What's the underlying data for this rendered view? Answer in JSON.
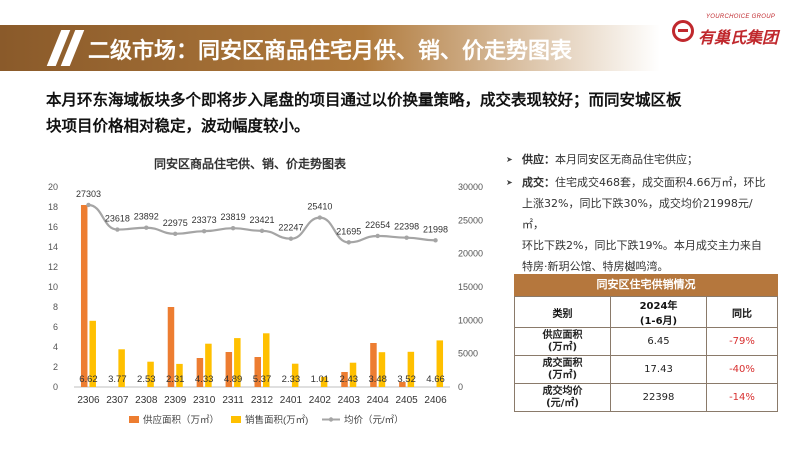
{
  "header": {
    "title": "二级市场：同安区商品住宅月供、销、价走势图表"
  },
  "logo": {
    "en": "YOURCHOICE GROUP",
    "cn": "有巢氏集团"
  },
  "summary": {
    "line1": "本月环东海域板块多个即将步入尾盘的项目通过以价换量策略，成交表现较好；而同安城区板",
    "line2": "块项目价格相对稳定，波动幅度较小。"
  },
  "bullets": [
    {
      "label": "供应：",
      "lines": [
        "本月同安区无商品住宅供应；"
      ]
    },
    {
      "label": "成交：",
      "lines": [
        "住宅成交468套，成交面积4.66万㎡，环比",
        "上涨32%，同比下跌30%，成交均价21998元/㎡，",
        "环比下跌2%，同比下跌19%。本月成交主力来自",
        "特房·新玥公馆、特房樾鸣湾。"
      ]
    }
  ],
  "table": {
    "caption": "同安区住宅供销情况",
    "headers": [
      "类别",
      "2024年",
      "(1-6月)",
      "同比"
    ],
    "rows": [
      {
        "label1": "供应面积",
        "label2": "(万㎡)",
        "value": "6.45",
        "yoy": "-79%"
      },
      {
        "label1": "成交面积",
        "label2": "(万㎡)",
        "value": "17.43",
        "yoy": "-40%"
      },
      {
        "label1": "成交均价",
        "label2": "(元/㎡)",
        "value": "22398",
        "yoy": "-14%"
      }
    ]
  },
  "colors": {
    "supply": "#ed7d31",
    "sales": "#ffc000",
    "price": "#a5a5a5",
    "header": "#a06a34",
    "brand": "#c0282d"
  },
  "chart_data": {
    "type": "bar",
    "title": "同安区商品住宅供、销、价走势图表",
    "categories": [
      "2306",
      "2307",
      "2308",
      "2309",
      "2310",
      "2311",
      "2312",
      "2401",
      "2402",
      "2403",
      "2404",
      "2405",
      "2406"
    ],
    "series": [
      {
        "name": "供应面积（万㎡）",
        "kind": "bar",
        "axis": "left",
        "values": [
          18.2,
          0,
          0,
          8.0,
          2.9,
          3.5,
          3.0,
          0,
          0,
          1.5,
          4.4,
          0.5,
          0
        ],
        "labels": [
          "",
          "",
          "",
          "",
          "",
          "",
          "",
          "",
          "",
          "",
          "",
          "",
          ""
        ]
      },
      {
        "name": "销售面积(万㎡)",
        "kind": "bar",
        "axis": "left",
        "values": [
          6.62,
          3.77,
          2.53,
          2.31,
          4.33,
          4.89,
          5.37,
          2.33,
          1.01,
          2.43,
          3.48,
          3.52,
          4.66
        ],
        "labels": [
          "6.62",
          "3.77",
          "2.53",
          "2.31",
          "4.33",
          "4.89",
          "5.37",
          "2.33",
          "1.01",
          "2.43",
          "3.48",
          "3.52",
          "4.66"
        ]
      },
      {
        "name": "均价（元/㎡）",
        "kind": "line",
        "axis": "right",
        "values": [
          27303,
          23618,
          23892,
          22975,
          23373,
          23819,
          23421,
          22247,
          25410,
          21695,
          22654,
          22398,
          21998
        ],
        "labels": [
          "27303",
          "23618",
          "23892",
          "22975",
          "23373",
          "23819",
          "23421",
          "22247",
          "25410",
          "21695",
          "22654",
          "22398",
          "21998"
        ]
      }
    ],
    "y_left": {
      "min": 0,
      "max": 20,
      "ticks": [
        "0",
        "2",
        "4",
        "6",
        "8",
        "10",
        "12",
        "14",
        "16",
        "18",
        "20"
      ]
    },
    "y_right": {
      "min": 0,
      "max": 30000,
      "ticks": [
        "0",
        "5000",
        "10000",
        "15000",
        "20000",
        "25000",
        "30000"
      ]
    },
    "legend": "bottom",
    "grid": false
  }
}
